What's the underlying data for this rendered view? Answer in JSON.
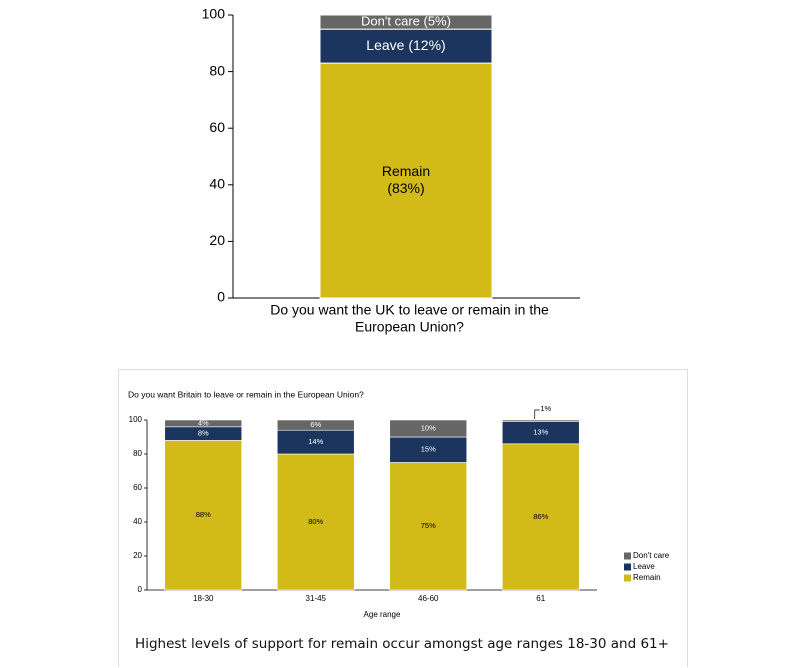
{
  "colors": {
    "remain": "#d2bb18",
    "leave": "#1c355e",
    "dont_care": "#666666"
  },
  "chart_data": [
    {
      "type": "bar",
      "stacked": true,
      "categories": [
        "Do you want the UK to leave or remain in the European Union?"
      ],
      "xlabel_lines": [
        "Do you want the UK to leave or remain in the",
        "European Union?"
      ],
      "series": [
        {
          "key": "remain",
          "values": [
            83
          ],
          "label_lines": [
            "Remain",
            "(83%)"
          ]
        },
        {
          "key": "leave",
          "values": [
            12
          ],
          "label_lines": [
            "Leave  (12%)"
          ]
        },
        {
          "key": "dont_care",
          "values": [
            5
          ],
          "label_lines": [
            "Don't care (5%)"
          ]
        }
      ],
      "ylim": [
        0,
        100
      ],
      "yticks": [
        "0",
        "20",
        "40",
        "60",
        "80",
        "100"
      ],
      "grid": false,
      "legend": "none"
    },
    {
      "type": "bar",
      "stacked": true,
      "title": "Do you want Britain to leave or remain in the European Union?",
      "xlabel": "Age range",
      "categories": [
        "18-30",
        "31-45",
        "46-60",
        "61"
      ],
      "series": [
        {
          "name": "Remain",
          "key": "remain",
          "values": [
            88,
            80,
            75,
            86
          ],
          "labels": [
            "88%",
            "80%",
            "75%",
            "86%"
          ]
        },
        {
          "name": "Leave",
          "key": "leave",
          "values": [
            8,
            14,
            15,
            13
          ],
          "labels": [
            "8%",
            "14%",
            "15%",
            "13%"
          ]
        },
        {
          "name": "Don't care",
          "key": "dont_care",
          "values": [
            4,
            6,
            10,
            1
          ],
          "labels": [
            "4%",
            "6%",
            "10%",
            "1%"
          ]
        }
      ],
      "ylim": [
        0,
        100
      ],
      "yticks": [
        "0",
        "20",
        "40",
        "60",
        "80",
        "100"
      ],
      "grid": false,
      "legend": "right"
    }
  ],
  "caption": "Highest levels of support for remain occur amongst age ranges 18-30 and 61+"
}
